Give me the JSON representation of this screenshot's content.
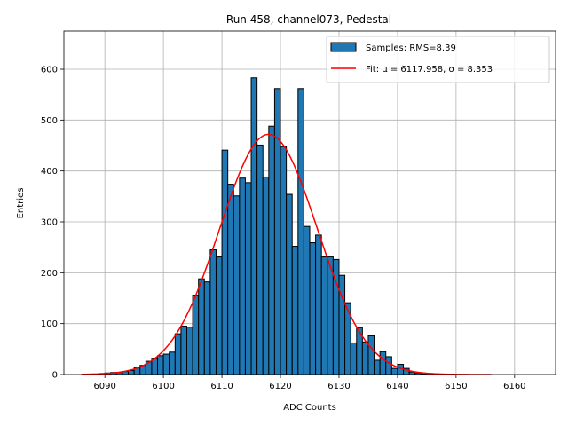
{
  "chart_data": {
    "type": "bar",
    "title": "Run 458, channel073, Pedestal",
    "xlabel": "ADC Counts",
    "ylabel": "Entries",
    "xlim": [
      6083,
      6167
    ],
    "ylim": [
      0,
      675
    ],
    "xticks": [
      6090,
      6100,
      6110,
      6120,
      6130,
      6140,
      6150,
      6160
    ],
    "yticks": [
      0,
      100,
      200,
      300,
      400,
      500,
      600
    ],
    "grid": true,
    "legend_position": "top-right",
    "bin_width": 1,
    "bins_start": 6086,
    "counts": [
      0,
      1,
      1,
      2,
      3,
      4,
      4,
      6,
      8,
      13,
      18,
      26,
      32,
      37,
      40,
      44,
      80,
      95,
      93,
      156,
      188,
      182,
      245,
      231,
      441,
      374,
      351,
      386,
      377,
      583,
      451,
      388,
      488,
      562,
      448,
      354,
      252,
      562,
      291,
      259,
      274,
      231,
      231,
      226,
      195,
      141,
      62,
      92,
      64,
      76,
      28,
      45,
      35,
      12,
      20,
      12,
      5,
      3,
      1,
      1,
      1,
      0,
      0,
      0,
      0,
      0,
      0,
      0,
      0,
      0
    ],
    "series": [
      {
        "name": "Samples: RMS=8.39",
        "kind": "histogram",
        "color": "#1f77b4"
      },
      {
        "name": "Fit: μ = 6117.958, σ = 8.353",
        "kind": "gaussian",
        "color": "#ff0000",
        "mu": 6117.958,
        "sigma": 8.353,
        "amplitude": 472,
        "x_range": [
          6086,
          6156
        ]
      }
    ]
  }
}
